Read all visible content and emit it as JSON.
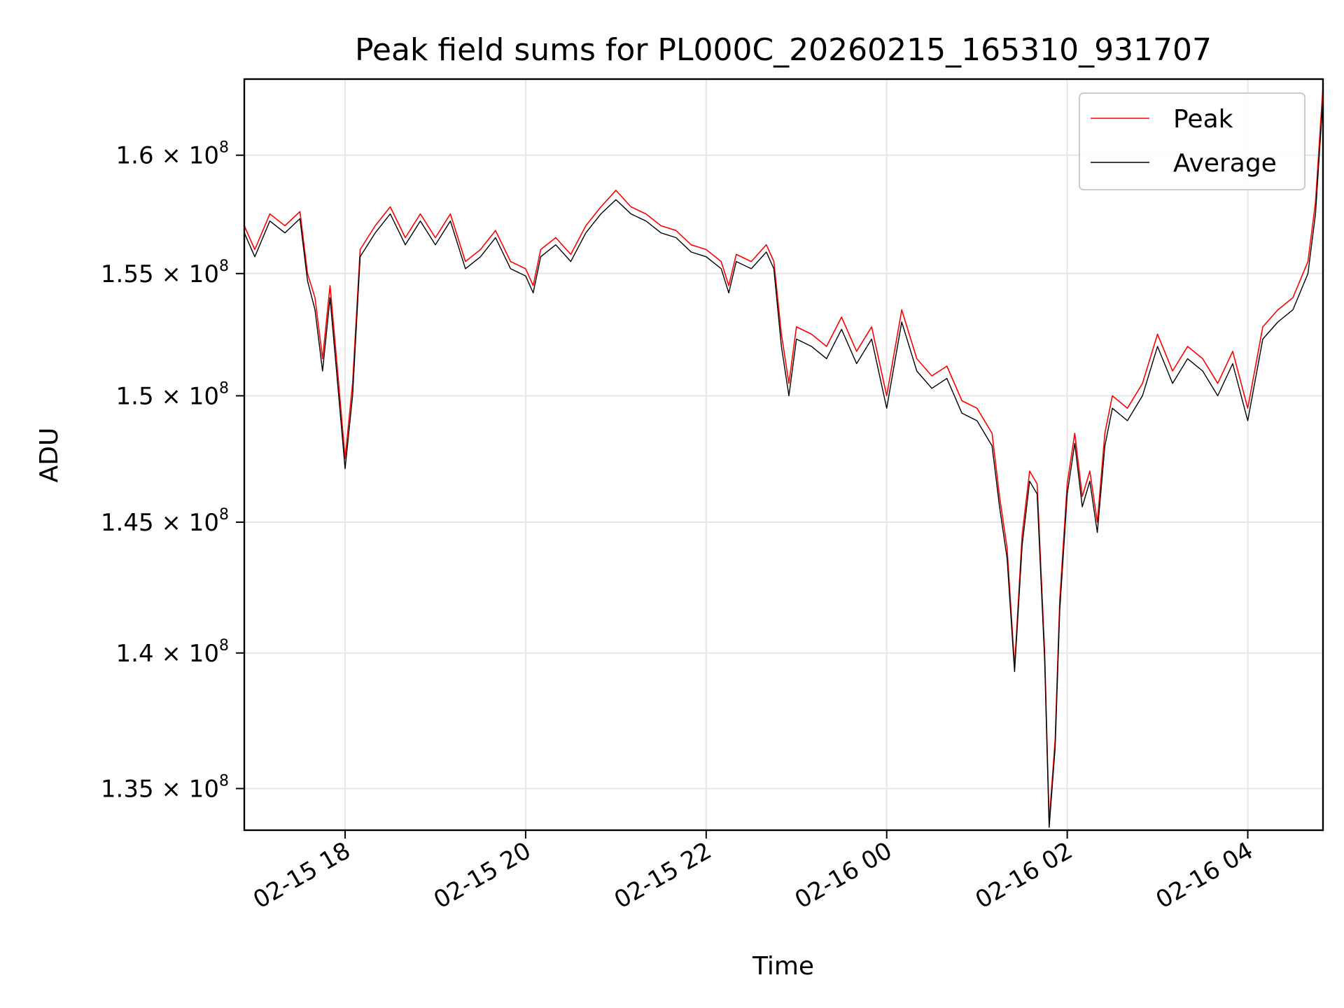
{
  "chart_data": {
    "type": "line",
    "title": "Peak field sums for PL000C_20260215_165310_931707",
    "xlabel": "Time",
    "ylabel": "ADU",
    "y_scale": "log",
    "grid": true,
    "legend_position": "top-right",
    "xlim": [
      "2026-02-15 16:53",
      "2026-02-16 04:50"
    ],
    "ylim": [
      133500000,
      163300000
    ],
    "x_ticks": [
      {
        "value": "2026-02-15 18:00",
        "label": "02-15 18"
      },
      {
        "value": "2026-02-15 20:00",
        "label": "02-15 20"
      },
      {
        "value": "2026-02-15 22:00",
        "label": "02-15 22"
      },
      {
        "value": "2026-02-16 00:00",
        "label": "02-16 00"
      },
      {
        "value": "2026-02-16 02:00",
        "label": "02-16 02"
      },
      {
        "value": "2026-02-16 04:00",
        "label": "02-16 04"
      }
    ],
    "y_ticks": [
      {
        "value": 135000000,
        "mantissa": "1.35",
        "base": "10",
        "exponent": "8"
      },
      {
        "value": 140000000,
        "mantissa": "1.4",
        "base": "10",
        "exponent": "8"
      },
      {
        "value": 145000000,
        "mantissa": "1.45",
        "base": "10",
        "exponent": "8"
      },
      {
        "value": 150000000,
        "mantissa": "1.5",
        "base": "10",
        "exponent": "8"
      },
      {
        "value": 155000000,
        "mantissa": "1.55",
        "base": "10",
        "exponent": "8"
      },
      {
        "value": 160000000,
        "mantissa": "1.6",
        "base": "10",
        "exponent": "8"
      }
    ],
    "series": [
      {
        "name": "Peak",
        "color": "#ff0000",
        "points": [
          [
            "2026-02-15 16:53",
            157000000
          ],
          [
            "2026-02-15 17:00",
            156000000
          ],
          [
            "2026-02-15 17:10",
            157500000
          ],
          [
            "2026-02-15 17:20",
            157000000
          ],
          [
            "2026-02-15 17:30",
            157600000
          ],
          [
            "2026-02-15 17:35",
            155000000
          ],
          [
            "2026-02-15 17:40",
            154000000
          ],
          [
            "2026-02-15 17:45",
            151500000
          ],
          [
            "2026-02-15 17:50",
            154500000
          ],
          [
            "2026-02-15 17:55",
            151000000
          ],
          [
            "2026-02-15 18:00",
            147500000
          ],
          [
            "2026-02-15 18:05",
            150500000
          ],
          [
            "2026-02-15 18:10",
            156000000
          ],
          [
            "2026-02-15 18:20",
            157000000
          ],
          [
            "2026-02-15 18:30",
            157800000
          ],
          [
            "2026-02-15 18:40",
            156500000
          ],
          [
            "2026-02-15 18:50",
            157500000
          ],
          [
            "2026-02-15 19:00",
            156500000
          ],
          [
            "2026-02-15 19:10",
            157500000
          ],
          [
            "2026-02-15 19:20",
            155500000
          ],
          [
            "2026-02-15 19:30",
            156000000
          ],
          [
            "2026-02-15 19:40",
            156800000
          ],
          [
            "2026-02-15 19:50",
            155500000
          ],
          [
            "2026-02-15 20:00",
            155200000
          ],
          [
            "2026-02-15 20:05",
            154500000
          ],
          [
            "2026-02-15 20:10",
            156000000
          ],
          [
            "2026-02-15 20:20",
            156500000
          ],
          [
            "2026-02-15 20:30",
            155800000
          ],
          [
            "2026-02-15 20:40",
            157000000
          ],
          [
            "2026-02-15 20:50",
            157800000
          ],
          [
            "2026-02-15 21:00",
            158500000
          ],
          [
            "2026-02-15 21:10",
            157800000
          ],
          [
            "2026-02-15 21:20",
            157500000
          ],
          [
            "2026-02-15 21:30",
            157000000
          ],
          [
            "2026-02-15 21:40",
            156800000
          ],
          [
            "2026-02-15 21:50",
            156200000
          ],
          [
            "2026-02-15 22:00",
            156000000
          ],
          [
            "2026-02-15 22:10",
            155500000
          ],
          [
            "2026-02-15 22:15",
            154500000
          ],
          [
            "2026-02-15 22:20",
            155800000
          ],
          [
            "2026-02-15 22:30",
            155500000
          ],
          [
            "2026-02-15 22:40",
            156200000
          ],
          [
            "2026-02-15 22:45",
            155500000
          ],
          [
            "2026-02-15 22:50",
            152500000
          ],
          [
            "2026-02-15 22:55",
            150500000
          ],
          [
            "2026-02-15 23:00",
            152800000
          ],
          [
            "2026-02-15 23:10",
            152500000
          ],
          [
            "2026-02-15 23:20",
            152000000
          ],
          [
            "2026-02-15 23:30",
            153200000
          ],
          [
            "2026-02-15 23:40",
            151800000
          ],
          [
            "2026-02-15 23:50",
            152800000
          ],
          [
            "2026-02-16 00:00",
            150000000
          ],
          [
            "2026-02-16 00:10",
            153500000
          ],
          [
            "2026-02-16 00:20",
            151500000
          ],
          [
            "2026-02-16 00:30",
            150800000
          ],
          [
            "2026-02-16 00:40",
            151200000
          ],
          [
            "2026-02-16 00:50",
            149800000
          ],
          [
            "2026-02-16 01:00",
            149500000
          ],
          [
            "2026-02-16 01:10",
            148500000
          ],
          [
            "2026-02-16 01:15",
            146000000
          ],
          [
            "2026-02-16 01:20",
            144000000
          ],
          [
            "2026-02-16 01:25",
            139500000
          ],
          [
            "2026-02-16 01:30",
            144500000
          ],
          [
            "2026-02-16 01:35",
            147000000
          ],
          [
            "2026-02-16 01:40",
            146500000
          ],
          [
            "2026-02-16 01:45",
            140000000
          ],
          [
            "2026-02-16 01:48",
            133800000
          ],
          [
            "2026-02-16 01:52",
            136800000
          ],
          [
            "2026-02-16 01:55",
            142000000
          ],
          [
            "2026-02-16 02:00",
            146500000
          ],
          [
            "2026-02-16 02:05",
            148500000
          ],
          [
            "2026-02-16 02:10",
            146000000
          ],
          [
            "2026-02-16 02:15",
            147000000
          ],
          [
            "2026-02-16 02:20",
            145000000
          ],
          [
            "2026-02-16 02:25",
            148500000
          ],
          [
            "2026-02-16 02:30",
            150000000
          ],
          [
            "2026-02-16 02:40",
            149500000
          ],
          [
            "2026-02-16 02:50",
            150500000
          ],
          [
            "2026-02-16 03:00",
            152500000
          ],
          [
            "2026-02-16 03:10",
            151000000
          ],
          [
            "2026-02-16 03:20",
            152000000
          ],
          [
            "2026-02-16 03:30",
            151500000
          ],
          [
            "2026-02-16 03:40",
            150500000
          ],
          [
            "2026-02-16 03:50",
            151800000
          ],
          [
            "2026-02-16 04:00",
            149500000
          ],
          [
            "2026-02-16 04:10",
            152800000
          ],
          [
            "2026-02-16 04:20",
            153500000
          ],
          [
            "2026-02-16 04:30",
            154000000
          ],
          [
            "2026-02-16 04:40",
            155500000
          ],
          [
            "2026-02-16 04:45",
            158000000
          ],
          [
            "2026-02-16 04:50",
            163000000
          ]
        ]
      },
      {
        "name": "Average",
        "color": "#000000",
        "points": [
          [
            "2026-02-15 16:53",
            156700000
          ],
          [
            "2026-02-15 17:00",
            155700000
          ],
          [
            "2026-02-15 17:10",
            157200000
          ],
          [
            "2026-02-15 17:20",
            156700000
          ],
          [
            "2026-02-15 17:30",
            157300000
          ],
          [
            "2026-02-15 17:35",
            154700000
          ],
          [
            "2026-02-15 17:40",
            153500000
          ],
          [
            "2026-02-15 17:45",
            151000000
          ],
          [
            "2026-02-15 17:50",
            154000000
          ],
          [
            "2026-02-15 17:55",
            150500000
          ],
          [
            "2026-02-15 18:00",
            147100000
          ],
          [
            "2026-02-15 18:05",
            150000000
          ],
          [
            "2026-02-15 18:10",
            155700000
          ],
          [
            "2026-02-15 18:20",
            156700000
          ],
          [
            "2026-02-15 18:30",
            157500000
          ],
          [
            "2026-02-15 18:40",
            156200000
          ],
          [
            "2026-02-15 18:50",
            157200000
          ],
          [
            "2026-02-15 19:00",
            156200000
          ],
          [
            "2026-02-15 19:10",
            157200000
          ],
          [
            "2026-02-15 19:20",
            155200000
          ],
          [
            "2026-02-15 19:30",
            155700000
          ],
          [
            "2026-02-15 19:40",
            156500000
          ],
          [
            "2026-02-15 19:50",
            155200000
          ],
          [
            "2026-02-15 20:00",
            154900000
          ],
          [
            "2026-02-15 20:05",
            154200000
          ],
          [
            "2026-02-15 20:10",
            155700000
          ],
          [
            "2026-02-15 20:20",
            156200000
          ],
          [
            "2026-02-15 20:30",
            155500000
          ],
          [
            "2026-02-15 20:40",
            156700000
          ],
          [
            "2026-02-15 20:50",
            157500000
          ],
          [
            "2026-02-15 21:00",
            158100000
          ],
          [
            "2026-02-15 21:10",
            157500000
          ],
          [
            "2026-02-15 21:20",
            157200000
          ],
          [
            "2026-02-15 21:30",
            156700000
          ],
          [
            "2026-02-15 21:40",
            156500000
          ],
          [
            "2026-02-15 21:50",
            155900000
          ],
          [
            "2026-02-15 22:00",
            155700000
          ],
          [
            "2026-02-15 22:10",
            155200000
          ],
          [
            "2026-02-15 22:15",
            154200000
          ],
          [
            "2026-02-15 22:20",
            155500000
          ],
          [
            "2026-02-15 22:30",
            155200000
          ],
          [
            "2026-02-15 22:40",
            155900000
          ],
          [
            "2026-02-15 22:45",
            155200000
          ],
          [
            "2026-02-15 22:50",
            152000000
          ],
          [
            "2026-02-15 22:55",
            150000000
          ],
          [
            "2026-02-15 23:00",
            152300000
          ],
          [
            "2026-02-15 23:10",
            152000000
          ],
          [
            "2026-02-15 23:20",
            151500000
          ],
          [
            "2026-02-15 23:30",
            152700000
          ],
          [
            "2026-02-15 23:40",
            151300000
          ],
          [
            "2026-02-15 23:50",
            152300000
          ],
          [
            "2026-02-16 00:00",
            149500000
          ],
          [
            "2026-02-16 00:10",
            153000000
          ],
          [
            "2026-02-16 00:20",
            151000000
          ],
          [
            "2026-02-16 00:30",
            150300000
          ],
          [
            "2026-02-16 00:40",
            150700000
          ],
          [
            "2026-02-16 00:50",
            149300000
          ],
          [
            "2026-02-16 01:00",
            149000000
          ],
          [
            "2026-02-16 01:10",
            148000000
          ],
          [
            "2026-02-16 01:15",
            145600000
          ],
          [
            "2026-02-16 01:20",
            143600000
          ],
          [
            "2026-02-16 01:25",
            139300000
          ],
          [
            "2026-02-16 01:30",
            144100000
          ],
          [
            "2026-02-16 01:35",
            146600000
          ],
          [
            "2026-02-16 01:40",
            146100000
          ],
          [
            "2026-02-16 01:45",
            139700000
          ],
          [
            "2026-02-16 01:48",
            133600000
          ],
          [
            "2026-02-16 01:52",
            136500000
          ],
          [
            "2026-02-16 01:55",
            141600000
          ],
          [
            "2026-02-16 02:00",
            146100000
          ],
          [
            "2026-02-16 02:05",
            148100000
          ],
          [
            "2026-02-16 02:10",
            145600000
          ],
          [
            "2026-02-16 02:15",
            146600000
          ],
          [
            "2026-02-16 02:20",
            144600000
          ],
          [
            "2026-02-16 02:25",
            148000000
          ],
          [
            "2026-02-16 02:30",
            149500000
          ],
          [
            "2026-02-16 02:40",
            149000000
          ],
          [
            "2026-02-16 02:50",
            150000000
          ],
          [
            "2026-02-16 03:00",
            152000000
          ],
          [
            "2026-02-16 03:10",
            150500000
          ],
          [
            "2026-02-16 03:20",
            151500000
          ],
          [
            "2026-02-16 03:30",
            151000000
          ],
          [
            "2026-02-16 03:40",
            150000000
          ],
          [
            "2026-02-16 03:50",
            151300000
          ],
          [
            "2026-02-16 04:00",
            149000000
          ],
          [
            "2026-02-16 04:10",
            152300000
          ],
          [
            "2026-02-16 04:20",
            153000000
          ],
          [
            "2026-02-16 04:30",
            153500000
          ],
          [
            "2026-02-16 04:40",
            155000000
          ],
          [
            "2026-02-16 04:45",
            157500000
          ],
          [
            "2026-02-16 04:50",
            162500000
          ]
        ]
      }
    ]
  }
}
